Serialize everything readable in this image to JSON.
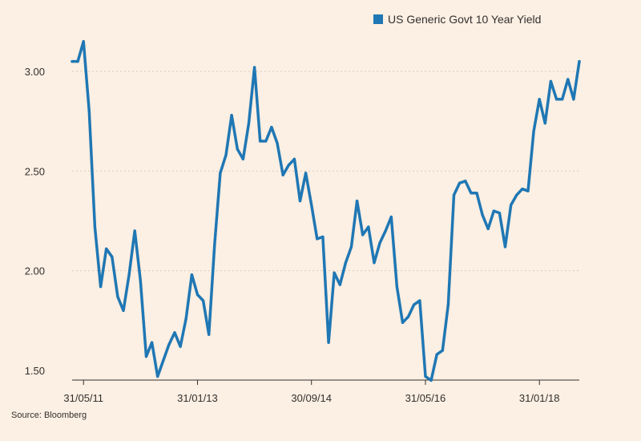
{
  "chart_data": {
    "type": "line",
    "title": "",
    "xlabel": "",
    "ylabel": "",
    "source": "Source: Bloomberg",
    "legend_position": "top-right",
    "grid": {
      "y": true,
      "x": false,
      "style": "dotted"
    },
    "ylim": [
      1.45,
      3.2
    ],
    "y_ticks": [
      1.5,
      2.0,
      2.5,
      3.0
    ],
    "y_tick_labels": [
      "1.50",
      "2.00",
      "2.50",
      "3.00"
    ],
    "x_tick_labels": [
      "31/05/11",
      "31/01/13",
      "30/09/14",
      "31/05/16",
      "31/01/18"
    ],
    "x_tick_index": [
      2,
      22,
      42,
      62,
      82
    ],
    "series": [
      {
        "name": "US Generic Govt 10 Year Yield",
        "color": "#1f77b4",
        "values": [
          3.05,
          3.05,
          3.15,
          2.8,
          2.22,
          1.92,
          2.11,
          2.07,
          1.87,
          1.8,
          1.98,
          2.2,
          1.95,
          1.57,
          1.64,
          1.47,
          1.55,
          1.63,
          1.69,
          1.62,
          1.76,
          1.98,
          1.88,
          1.85,
          1.68,
          2.13,
          2.49,
          2.58,
          2.78,
          2.61,
          2.56,
          2.74,
          3.02,
          2.65,
          2.65,
          2.72,
          2.64,
          2.48,
          2.53,
          2.56,
          2.35,
          2.49,
          2.33,
          2.16,
          2.17,
          1.64,
          1.99,
          1.93,
          2.04,
          2.12,
          2.35,
          2.18,
          2.22,
          2.04,
          2.14,
          2.2,
          2.27,
          1.92,
          1.74,
          1.77,
          1.83,
          1.85,
          1.47,
          1.45,
          1.58,
          1.6,
          1.83,
          2.38,
          2.44,
          2.45,
          2.39,
          2.39,
          2.28,
          2.21,
          2.3,
          2.29,
          2.12,
          2.33,
          2.38,
          2.41,
          2.4,
          2.7,
          2.86,
          2.74,
          2.95,
          2.86,
          2.86,
          2.96,
          2.86,
          3.05
        ]
      }
    ]
  }
}
